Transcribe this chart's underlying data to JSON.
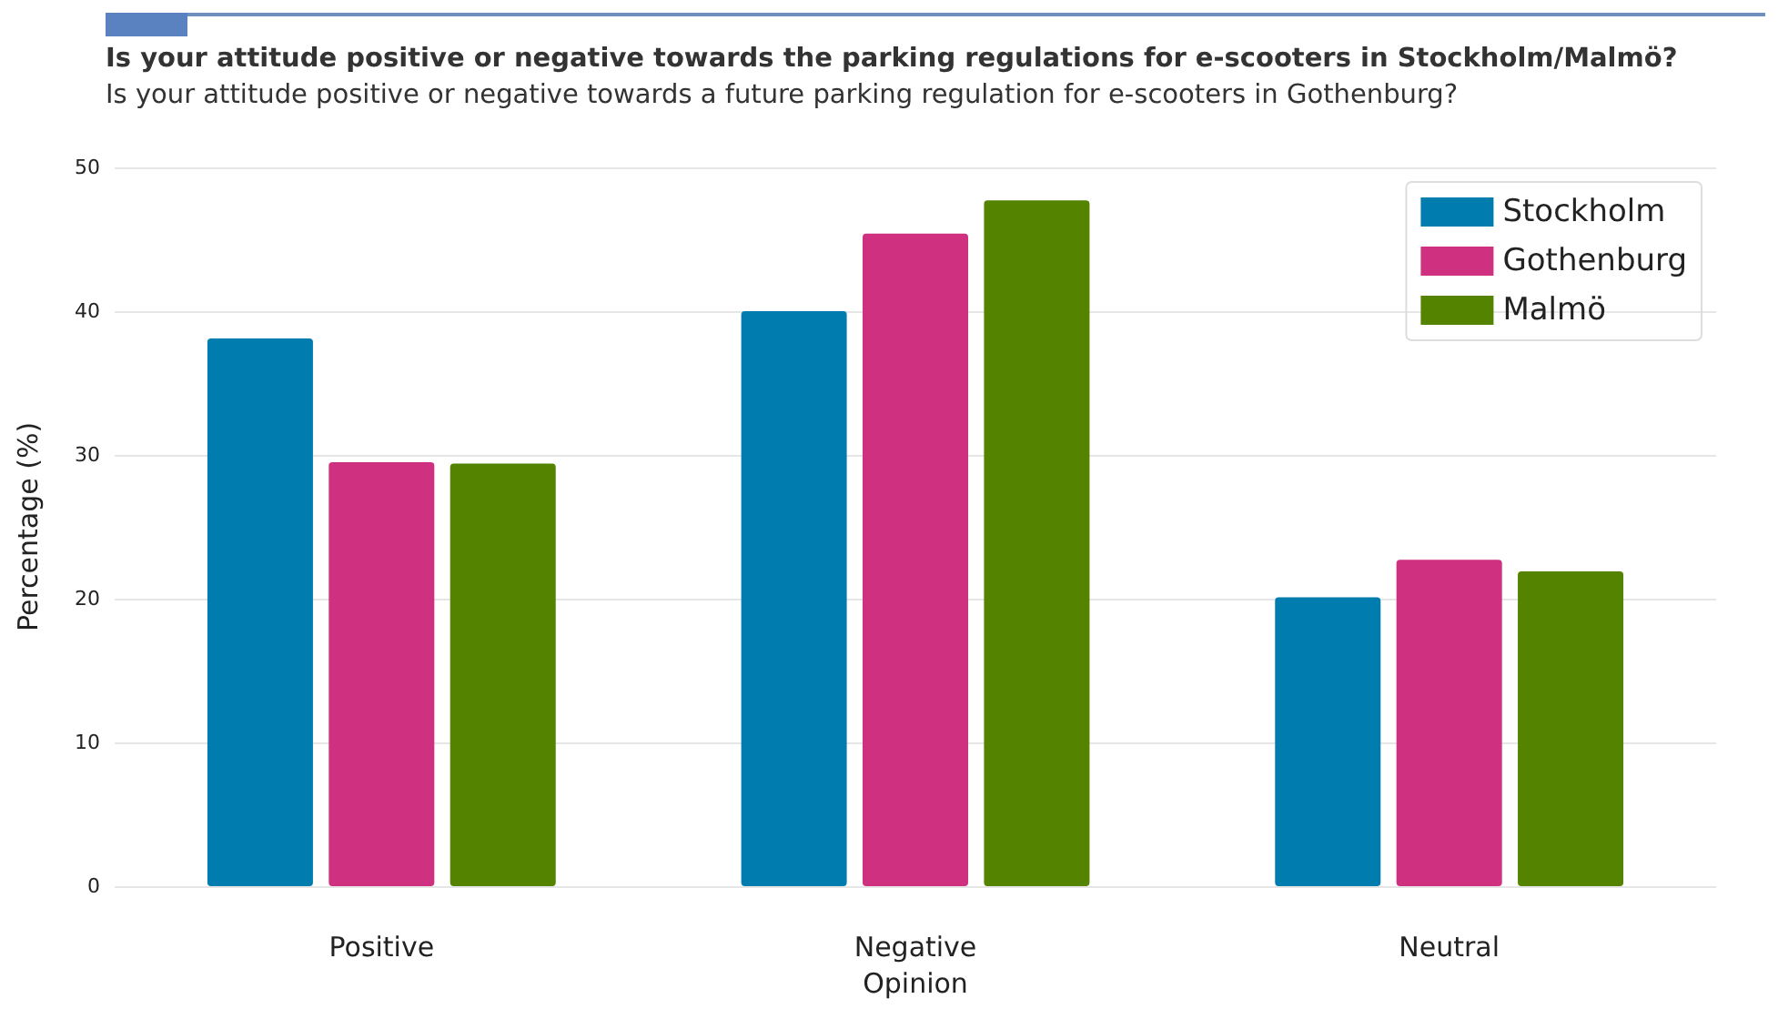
{
  "chart_data": {
    "type": "bar",
    "title": "Is your attitude positive or negative towards the parking regulations for e-scooters in Stockholm/Malmö?",
    "subtitle": "Is your attitude positive or negative towards a future parking regulation for e-scooters in Gothenburg?",
    "xlabel": "Opinion",
    "ylabel": "Percentage (%)",
    "categories": [
      "Positive",
      "Negative",
      "Neutral"
    ],
    "series": [
      {
        "name": "Stockholm",
        "color": "#007caf",
        "values": [
          38.1,
          40.0,
          20.1
        ]
      },
      {
        "name": "Gothenburg",
        "color": "#d03080",
        "values": [
          29.5,
          45.4,
          22.7
        ]
      },
      {
        "name": "Malmö",
        "color": "#548300",
        "values": [
          29.4,
          47.7,
          21.9
        ]
      }
    ],
    "ylim": [
      0,
      50
    ],
    "yticks": [
      0,
      10,
      20,
      30,
      40,
      50
    ],
    "grid": "y",
    "legend": "top right"
  }
}
